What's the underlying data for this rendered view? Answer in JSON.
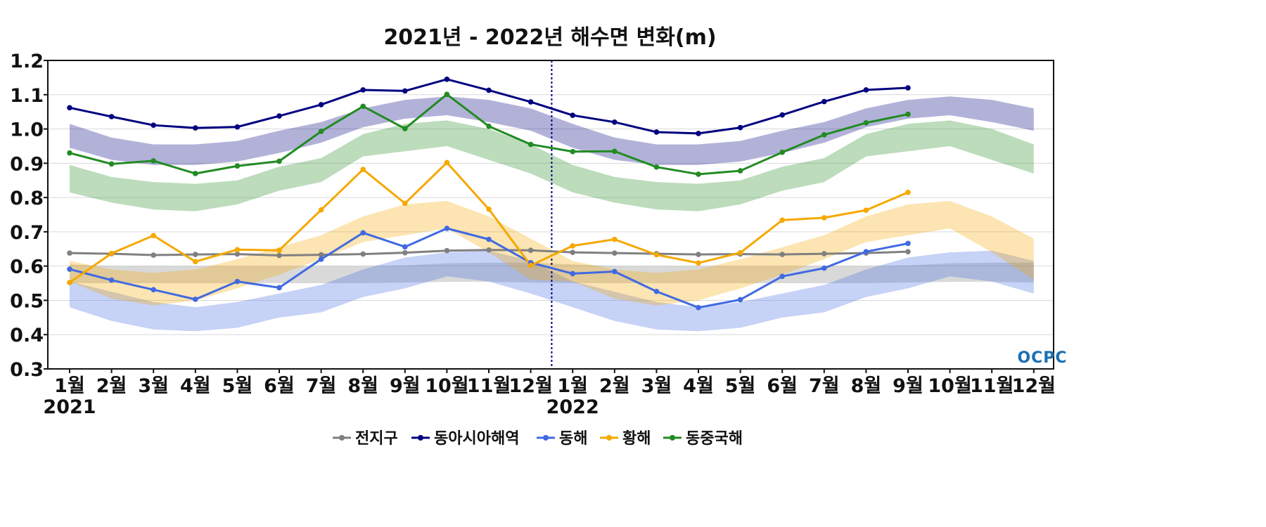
{
  "logo_text": "OCPC",
  "chart_data": {
    "type": "line",
    "title": "2021년 - 2022년 해수면 변화(m)",
    "xlabel": "",
    "ylabel": "",
    "ylim": [
      0.3,
      1.2
    ],
    "yticks": [
      "0.3",
      "0.4",
      "0.5",
      "0.6",
      "0.7",
      "0.8",
      "0.9",
      "1.0",
      "1.1",
      "1.2"
    ],
    "categories": [
      "1월",
      "2월",
      "3월",
      "4월",
      "5월",
      "6월",
      "7월",
      "8월",
      "9월",
      "10월",
      "11월",
      "12월",
      "1월",
      "2월",
      "3월",
      "4월",
      "5월",
      "6월",
      "7월",
      "8월",
      "9월",
      "10월",
      "11월",
      "12월"
    ],
    "year_labels": [
      {
        "index": 0,
        "label": "2021"
      },
      {
        "index": 12,
        "label": "2022"
      }
    ],
    "divider_after_index": 11,
    "grid": true,
    "legend_position": "bottom",
    "series": [
      {
        "name": "전지구",
        "color": "#808080",
        "values": [
          0.638,
          0.636,
          0.632,
          0.634,
          0.635,
          0.631,
          0.633,
          0.635,
          0.639,
          0.645,
          0.647,
          0.646,
          0.64,
          0.638,
          0.636,
          0.634,
          0.635,
          0.634,
          0.636,
          0.638,
          0.642,
          null,
          null,
          null
        ],
        "band_low": [
          0.55,
          0.55,
          0.55,
          0.55,
          0.55,
          0.55,
          0.55,
          0.55,
          0.552,
          0.554,
          0.554,
          0.552,
          0.55,
          0.55,
          0.55,
          0.55,
          0.55,
          0.55,
          0.55,
          0.55,
          0.552,
          0.554,
          0.554,
          0.552
        ],
        "band_high": [
          0.605,
          0.6,
          0.6,
          0.6,
          0.6,
          0.6,
          0.6,
          0.6,
          0.602,
          0.608,
          0.61,
          0.61,
          0.605,
          0.6,
          0.6,
          0.6,
          0.6,
          0.6,
          0.6,
          0.6,
          0.602,
          0.608,
          0.61,
          0.61
        ]
      },
      {
        "name": "동아시아해역",
        "color": "#000080",
        "values": [
          1.062,
          1.036,
          1.011,
          1.003,
          1.006,
          1.038,
          1.071,
          1.114,
          1.111,
          1.145,
          1.113,
          1.079,
          1.04,
          1.02,
          0.991,
          0.987,
          1.004,
          1.041,
          1.08,
          1.114,
          1.12,
          null,
          null,
          null
        ],
        "band_low": [
          0.945,
          0.91,
          0.895,
          0.895,
          0.905,
          0.93,
          0.96,
          1.005,
          1.03,
          1.04,
          1.02,
          0.995,
          0.945,
          0.91,
          0.895,
          0.895,
          0.905,
          0.93,
          0.96,
          1.005,
          1.03,
          1.04,
          1.02,
          0.995
        ],
        "band_high": [
          1.015,
          0.975,
          0.955,
          0.955,
          0.965,
          0.995,
          1.02,
          1.06,
          1.085,
          1.095,
          1.085,
          1.06,
          1.015,
          0.975,
          0.955,
          0.955,
          0.965,
          0.995,
          1.02,
          1.06,
          1.085,
          1.095,
          1.085,
          1.06
        ]
      },
      {
        "name": "동해",
        "color": "#4169E1",
        "values": [
          0.591,
          0.559,
          0.531,
          0.503,
          0.555,
          0.537,
          0.62,
          0.697,
          0.656,
          0.71,
          0.678,
          0.61,
          0.578,
          0.584,
          0.526,
          0.479,
          0.502,
          0.57,
          0.594,
          0.642,
          0.666,
          null,
          null,
          null
        ],
        "band_low": [
          0.48,
          0.44,
          0.415,
          0.41,
          0.42,
          0.45,
          0.465,
          0.51,
          0.535,
          0.57,
          0.555,
          0.52,
          0.48,
          0.44,
          0.415,
          0.41,
          0.42,
          0.45,
          0.465,
          0.51,
          0.535,
          0.57,
          0.555,
          0.52
        ],
        "band_high": [
          0.555,
          0.525,
          0.495,
          0.48,
          0.495,
          0.52,
          0.545,
          0.59,
          0.625,
          0.64,
          0.645,
          0.615,
          0.555,
          0.525,
          0.495,
          0.48,
          0.495,
          0.52,
          0.545,
          0.59,
          0.625,
          0.64,
          0.645,
          0.615
        ]
      },
      {
        "name": "황해",
        "color": "#F5A800",
        "values": [
          0.552,
          0.637,
          0.689,
          0.613,
          0.648,
          0.646,
          0.764,
          0.882,
          0.783,
          0.902,
          0.766,
          0.602,
          0.659,
          0.678,
          0.633,
          0.609,
          0.639,
          0.734,
          0.741,
          0.763,
          0.815,
          null,
          null,
          null
        ],
        "band_low": [
          0.555,
          0.505,
          0.485,
          0.5,
          0.535,
          0.575,
          0.62,
          0.67,
          0.69,
          0.71,
          0.64,
          0.56,
          0.555,
          0.505,
          0.485,
          0.5,
          0.535,
          0.575,
          0.62,
          0.67,
          0.69,
          0.71,
          0.64,
          0.56
        ],
        "band_high": [
          0.615,
          0.59,
          0.58,
          0.59,
          0.62,
          0.655,
          0.69,
          0.745,
          0.78,
          0.79,
          0.745,
          0.68,
          0.615,
          0.59,
          0.58,
          0.59,
          0.62,
          0.655,
          0.69,
          0.745,
          0.78,
          0.79,
          0.745,
          0.68
        ]
      },
      {
        "name": "동중국해",
        "color": "#228B22",
        "values": [
          0.93,
          0.898,
          0.907,
          0.87,
          0.892,
          0.906,
          0.993,
          1.066,
          1.001,
          1.101,
          1.008,
          0.955,
          0.934,
          0.935,
          0.889,
          0.868,
          0.878,
          0.932,
          0.983,
          1.018,
          1.043,
          null,
          null,
          null
        ],
        "band_low": [
          0.815,
          0.785,
          0.765,
          0.76,
          0.78,
          0.82,
          0.845,
          0.92,
          0.935,
          0.95,
          0.91,
          0.87,
          0.815,
          0.785,
          0.765,
          0.76,
          0.78,
          0.82,
          0.845,
          0.92,
          0.935,
          0.95,
          0.91,
          0.87
        ],
        "band_high": [
          0.895,
          0.86,
          0.845,
          0.84,
          0.85,
          0.89,
          0.915,
          0.985,
          1.015,
          1.025,
          1.0,
          0.955,
          0.895,
          0.86,
          0.845,
          0.84,
          0.85,
          0.89,
          0.915,
          0.985,
          1.015,
          1.025,
          1.0,
          0.955
        ]
      }
    ]
  }
}
